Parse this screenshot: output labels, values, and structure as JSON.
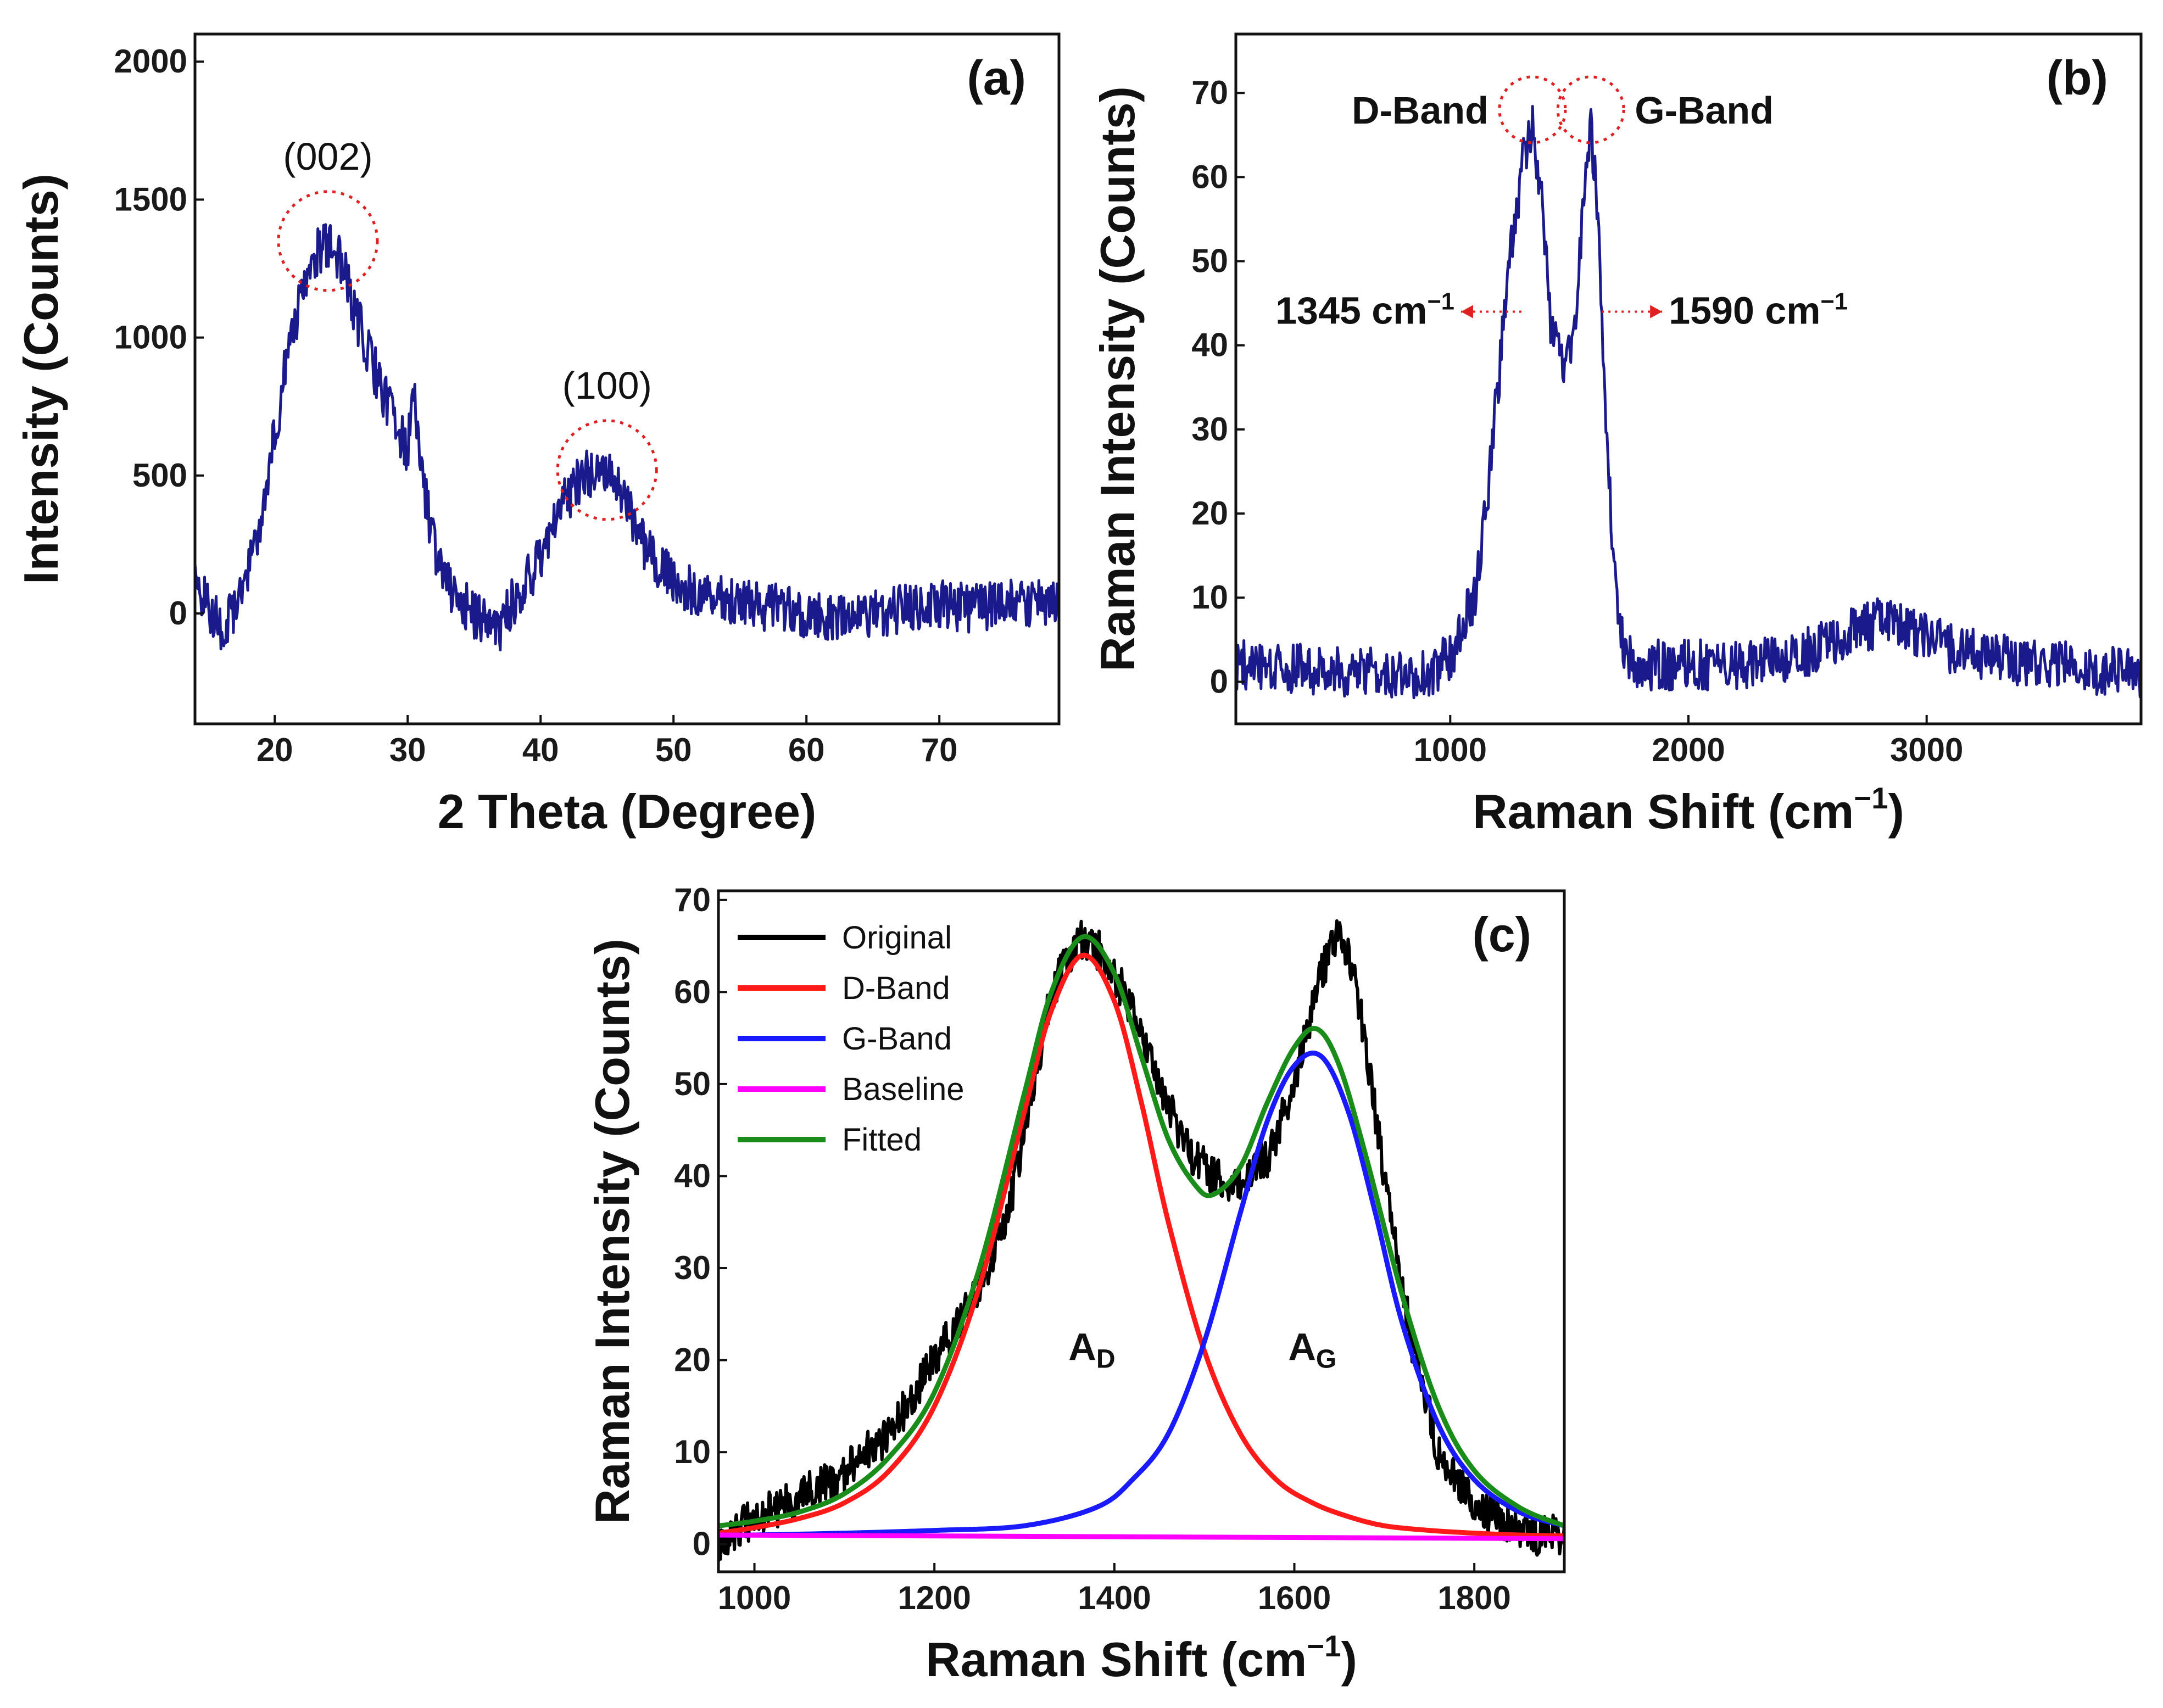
{
  "chart_data": [
    {
      "id": "a",
      "type": "line",
      "panel_label": "(a)",
      "xlabel": "2 Theta (Degree)",
      "ylabel": "Intensity (Counts)",
      "xlim": [
        14,
        79
      ],
      "ylim": [
        -400,
        2100
      ],
      "xticks": [
        20,
        30,
        40,
        50,
        60,
        70
      ],
      "yticks": [
        0,
        500,
        1000,
        1500,
        2000
      ],
      "series": [
        {
          "name": "XRD",
          "color": "#1a1a8c",
          "noise": 90,
          "x": [
            14,
            16,
            17,
            18,
            19,
            20,
            21,
            22,
            23,
            24,
            25,
            26,
            27,
            28,
            29,
            30,
            30.4,
            31,
            32,
            33,
            34,
            35,
            36,
            37,
            38,
            39,
            40,
            41,
            42,
            43,
            44,
            45,
            46,
            47,
            48,
            50,
            52,
            55,
            58,
            60,
            62,
            65,
            68,
            70,
            72,
            75,
            77,
            79
          ],
          "y": [
            100,
            -50,
            20,
            150,
            350,
            650,
            950,
            1150,
            1300,
            1330,
            1280,
            1100,
            950,
            820,
            700,
            580,
            900,
            500,
            250,
            100,
            50,
            0,
            -40,
            -50,
            50,
            120,
            200,
            340,
            420,
            490,
            520,
            530,
            430,
            330,
            230,
            120,
            60,
            40,
            20,
            -20,
            -10,
            0,
            20,
            30,
            20,
            30,
            40,
            50
          ]
        }
      ],
      "annotations": [
        {
          "text": "(002)",
          "x": 24,
          "y": 1350
        },
        {
          "text": "(100)",
          "x": 45,
          "y": 520
        }
      ]
    },
    {
      "id": "b",
      "type": "line",
      "panel_label": "(b)",
      "xlabel": "Raman Shift (cm",
      "xlabel_sup": "−1",
      "xlabel_end": ")",
      "ylabel": "Raman Intensity (Counts)",
      "xlim": [
        100,
        3900
      ],
      "ylim": [
        -5,
        77
      ],
      "xticks": [
        1000,
        2000,
        3000
      ],
      "yticks": [
        0,
        10,
        20,
        30,
        40,
        50,
        60,
        70
      ],
      "series": [
        {
          "name": "Raman",
          "color": "#1a1a8c",
          "noise": 3,
          "x": [
            100,
            400,
            700,
            900,
            1000,
            1100,
            1150,
            1200,
            1250,
            1300,
            1345,
            1380,
            1420,
            1460,
            1500,
            1530,
            1560,
            1590,
            1620,
            1650,
            1690,
            1730,
            1800,
            2000,
            2200,
            2400,
            2550,
            2700,
            2800,
            2950,
            3100,
            3300,
            3500,
            3700,
            3900
          ],
          "y": [
            2,
            1.5,
            1,
            1,
            3,
            10,
            20,
            35,
            50,
            61,
            66,
            58,
            43,
            38,
            39,
            45,
            58,
            66,
            55,
            32,
            12,
            3,
            2,
            2,
            2,
            2.5,
            4,
            6,
            7,
            6,
            4,
            3,
            2,
            1.5,
            1
          ]
        }
      ],
      "peaks": [
        {
          "name": "D-Band",
          "x": 1345,
          "y": 68,
          "label": "1345 cm",
          "label_sup": "−1"
        },
        {
          "name": "G-Band",
          "x": 1590,
          "y": 68,
          "label": "1590 cm",
          "label_sup": "−1"
        }
      ]
    },
    {
      "id": "c",
      "type": "line",
      "panel_label": "(c)",
      "xlabel": "Raman Shift (cm",
      "xlabel_sup": "−1",
      "xlabel_end": ")",
      "ylabel": "Raman Intensity (Counts)",
      "xlim": [
        960,
        1900
      ],
      "ylim": [
        -3,
        71
      ],
      "xticks": [
        1000,
        1200,
        1400,
        1600,
        1800
      ],
      "yticks": [
        0,
        10,
        20,
        30,
        40,
        50,
        60,
        70
      ],
      "legend_position": "top-left",
      "series": [
        {
          "name": "Original",
          "color": "#000000",
          "noise": 2.2,
          "x": [
            960,
            1000,
            1050,
            1100,
            1150,
            1200,
            1250,
            1280,
            1300,
            1330,
            1360,
            1390,
            1420,
            1450,
            1480,
            1510,
            1540,
            1570,
            1600,
            1630,
            1650,
            1670,
            1700,
            1730,
            1760,
            1800,
            1840,
            1870,
            1900
          ],
          "y": [
            0,
            3,
            5,
            8,
            12,
            20,
            28,
            35,
            45,
            60,
            66,
            64,
            58,
            50,
            43,
            40,
            39,
            42,
            50,
            62,
            67,
            60,
            40,
            22,
            10,
            4,
            2,
            1,
            1
          ]
        },
        {
          "name": "D-Band",
          "color": "#ff1a1a",
          "noise": 0,
          "x": [
            960,
            1000,
            1050,
            1100,
            1150,
            1200,
            1250,
            1300,
            1330,
            1365,
            1400,
            1430,
            1460,
            1500,
            1540,
            1580,
            1620,
            1660,
            1700,
            1750,
            1800,
            1850,
            1900
          ],
          "y": [
            1.2,
            1.8,
            2.8,
            4.5,
            8,
            15,
            28,
            47,
            58,
            64,
            59,
            48,
            35,
            21,
            12,
            7,
            4.5,
            3,
            2,
            1.5,
            1.2,
            1,
            0.9
          ]
        },
        {
          "name": "G-Band",
          "color": "#1a1aff",
          "noise": 0,
          "x": [
            960,
            1000,
            1100,
            1200,
            1300,
            1380,
            1420,
            1460,
            1500,
            1540,
            1570,
            1600,
            1630,
            1660,
            1690,
            1720,
            1760,
            1800,
            1850,
            1900
          ],
          "y": [
            1,
            1,
            1.2,
            1.5,
            2,
            4,
            7,
            12,
            22,
            36,
            46,
            52,
            53,
            47,
            36,
            24,
            13,
            7,
            3.5,
            2
          ]
        },
        {
          "name": "Baseline",
          "color": "#ff00ff",
          "noise": 0,
          "x": [
            960,
            1900
          ],
          "y": [
            1,
            0.6
          ]
        },
        {
          "name": "Fitted",
          "color": "#1a8c1a",
          "noise": 0,
          "x": [
            960,
            1000,
            1050,
            1100,
            1150,
            1200,
            1250,
            1300,
            1330,
            1365,
            1400,
            1430,
            1460,
            1490,
            1510,
            1540,
            1570,
            1600,
            1625,
            1650,
            1680,
            1720,
            1760,
            1800,
            1850,
            1900
          ],
          "y": [
            2,
            2.5,
            3.5,
            5.5,
            9.5,
            16.5,
            30,
            49,
            60,
            66,
            62,
            53,
            44,
            39,
            38,
            41,
            48,
            54,
            56,
            52,
            42,
            27,
            15,
            8,
            4,
            2
          ]
        }
      ],
      "annotations": [
        {
          "text": "A",
          "sub": "D",
          "x": 1375,
          "y": 20
        },
        {
          "text": "A",
          "sub": "G",
          "x": 1620,
          "y": 20
        }
      ]
    }
  ]
}
